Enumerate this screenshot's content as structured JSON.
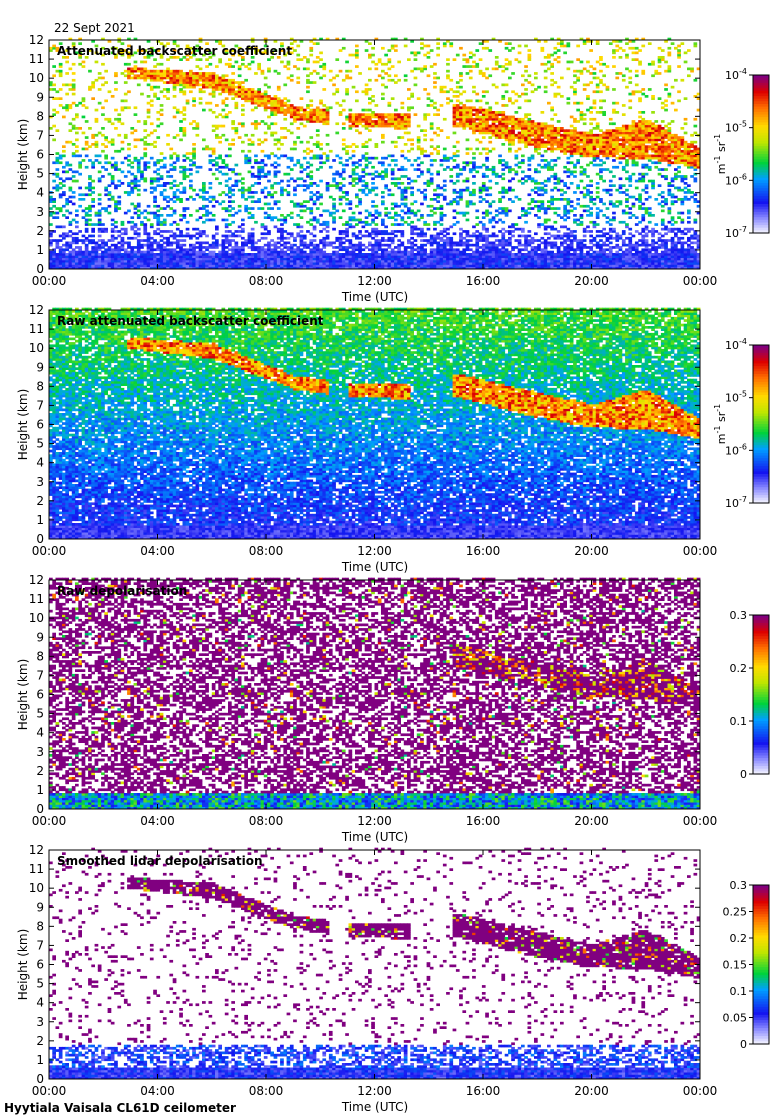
{
  "figure": {
    "date": "22 Sept 2021",
    "footer": "Hyytiala Vaisala CL61D ceilometer"
  },
  "chart_data": [
    {
      "type": "heatmap",
      "title": "Attenuated backscatter coefficient",
      "xlabel": "Time (UTC)",
      "ylabel": "Height (km)",
      "x_ticks": [
        "00:00",
        "04:00",
        "08:00",
        "12:00",
        "16:00",
        "20:00",
        "00:00"
      ],
      "y_ticks": [
        "0",
        "1",
        "2",
        "3",
        "4",
        "5",
        "6",
        "7",
        "8",
        "9",
        "10",
        "11",
        "12"
      ],
      "xlim": [
        0,
        24
      ],
      "ylim": [
        0,
        12
      ],
      "colorbar": {
        "scale": "log",
        "range": [
          1e-07,
          0.0001
        ],
        "ticks": [
          {
            "base": "10",
            "exp": "-4"
          },
          {
            "base": "10",
            "exp": "-5"
          },
          {
            "base": "10",
            "exp": "-6"
          },
          {
            "base": "10",
            "exp": "-7"
          }
        ],
        "unit": {
          "m": "m",
          "m_exp": "-1",
          "sr": "sr",
          "sr_exp": "-1"
        }
      },
      "cloud_layer": {
        "base_km": [
          [
            3,
            9.9
          ],
          [
            6,
            9.4
          ],
          [
            9,
            7.8
          ],
          [
            11,
            7.4
          ],
          [
            13,
            7.3
          ],
          [
            15,
            7.4
          ],
          [
            18,
            6.3
          ],
          [
            20,
            5.8
          ],
          [
            22,
            5.7
          ],
          [
            24,
            5.2
          ]
        ],
        "top_km": [
          [
            3,
            10.5
          ],
          [
            6,
            10.2
          ],
          [
            9,
            8.5
          ],
          [
            11,
            8.1
          ],
          [
            13,
            8.1
          ],
          [
            15,
            8.6
          ],
          [
            18,
            7.6
          ],
          [
            20,
            7.0
          ],
          [
            22,
            7.8
          ],
          [
            24,
            6.2
          ]
        ],
        "gaps_hours": [
          [
            10.3,
            11.0
          ],
          [
            13.3,
            14.8
          ]
        ]
      },
      "colormap": "rainbow (white-blue-green-yellow-red-purple)"
    },
    {
      "type": "heatmap",
      "title": "Raw attenuated backscatter coefficient",
      "xlabel": "Time (UTC)",
      "ylabel": "Height (km)",
      "x_ticks": [
        "00:00",
        "04:00",
        "08:00",
        "12:00",
        "16:00",
        "20:00",
        "00:00"
      ],
      "y_ticks": [
        "0",
        "1",
        "2",
        "3",
        "4",
        "5",
        "6",
        "7",
        "8",
        "9",
        "10",
        "11",
        "12"
      ],
      "xlim": [
        0,
        24
      ],
      "ylim": [
        0,
        12
      ],
      "colorbar": {
        "scale": "log",
        "range": [
          1e-07,
          0.0001
        ],
        "ticks": [
          {
            "base": "10",
            "exp": "-4"
          },
          {
            "base": "10",
            "exp": "-5"
          },
          {
            "base": "10",
            "exp": "-6"
          },
          {
            "base": "10",
            "exp": "-7"
          }
        ],
        "unit": {
          "m": "m",
          "m_exp": "-1",
          "sr": "sr",
          "sr_exp": "-1"
        }
      },
      "colormap": "rainbow (white-blue-green-yellow-red-purple)"
    },
    {
      "type": "heatmap",
      "title": "Raw depolarisation",
      "xlabel": "Time (UTC)",
      "ylabel": "Height (km)",
      "x_ticks": [
        "00:00",
        "04:00",
        "08:00",
        "12:00",
        "16:00",
        "20:00",
        "00:00"
      ],
      "y_ticks": [
        "0",
        "1",
        "2",
        "3",
        "4",
        "5",
        "6",
        "7",
        "8",
        "9",
        "10",
        "11",
        "12"
      ],
      "xlim": [
        0,
        24
      ],
      "ylim": [
        0,
        12
      ],
      "colorbar": {
        "scale": "linear",
        "range": [
          0,
          0.3
        ],
        "ticks": [
          "0.3",
          "0.2",
          "0.1",
          "0"
        ]
      },
      "colormap": "rainbow (white-blue-green-yellow-red-purple)"
    },
    {
      "type": "heatmap",
      "title": "Smoothed lidar depolarisation",
      "xlabel": "Time (UTC)",
      "ylabel": "Height (km)",
      "x_ticks": [
        "00:00",
        "04:00",
        "08:00",
        "12:00",
        "16:00",
        "20:00",
        "00:00"
      ],
      "y_ticks": [
        "0",
        "1",
        "2",
        "3",
        "4",
        "5",
        "6",
        "7",
        "8",
        "9",
        "10",
        "11",
        "12"
      ],
      "xlim": [
        0,
        24
      ],
      "ylim": [
        0,
        12
      ],
      "colorbar": {
        "scale": "linear",
        "range": [
          0,
          0.3
        ],
        "ticks": [
          "0.3",
          "0.25",
          "0.2",
          "0.15",
          "0.1",
          "0.05",
          "0"
        ]
      },
      "colormap": "rainbow (white-blue-green-yellow-red-purple)"
    }
  ]
}
